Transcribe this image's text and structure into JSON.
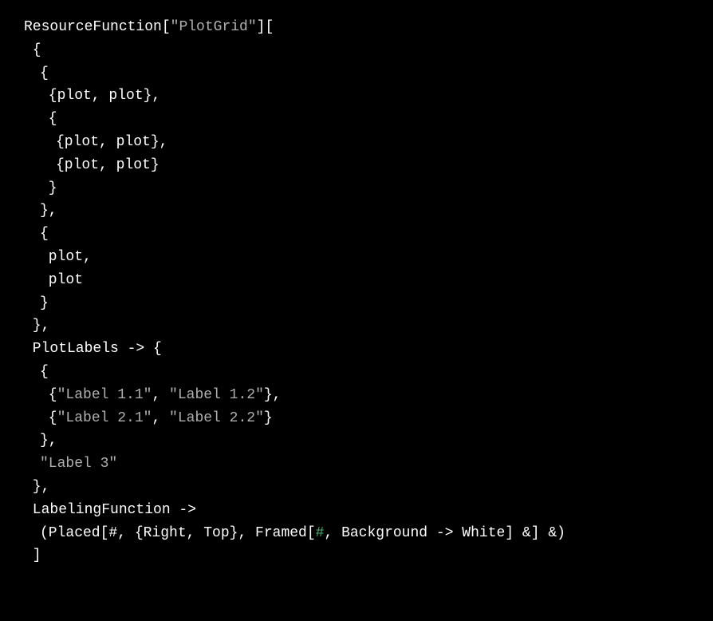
{
  "code": {
    "colors": {
      "background": "#000000",
      "text": "#ffffff",
      "string": "#b0b0b0",
      "slot": "#4fb070"
    },
    "font": {
      "family": "Courier New",
      "size_pt": 14
    },
    "lines": [
      {
        "parts": [
          {
            "t": "ResourceFunction[",
            "c": "ident"
          },
          {
            "t": "\"PlotGrid\"",
            "c": "str"
          },
          {
            "t": "][",
            "c": "ident"
          }
        ],
        "indent": 0
      },
      {
        "parts": [
          {
            "t": " {",
            "c": "ident"
          }
        ],
        "indent": 0
      },
      {
        "parts": [
          {
            "t": "{",
            "c": "ident"
          }
        ],
        "indent": 1
      },
      {
        "parts": [
          {
            "t": " {plot, plot},",
            "c": "ident"
          }
        ],
        "indent": 1
      },
      {
        "parts": [
          {
            "t": " {",
            "c": "ident"
          }
        ],
        "indent": 1
      },
      {
        "parts": [
          {
            "t": "{plot, plot},",
            "c": "ident"
          }
        ],
        "indent": 2
      },
      {
        "parts": [
          {
            "t": "{plot, plot}",
            "c": "ident"
          }
        ],
        "indent": 2
      },
      {
        "parts": [
          {
            "t": " }",
            "c": "ident"
          }
        ],
        "indent": 1
      },
      {
        "parts": [
          {
            "t": "},",
            "c": "ident"
          }
        ],
        "indent": 1
      },
      {
        "parts": [
          {
            "t": "{",
            "c": "ident"
          }
        ],
        "indent": 1
      },
      {
        "parts": [
          {
            "t": " plot,",
            "c": "ident"
          }
        ],
        "indent": 1
      },
      {
        "parts": [
          {
            "t": " plot",
            "c": "ident"
          }
        ],
        "indent": 1
      },
      {
        "parts": [
          {
            "t": "}",
            "c": "ident"
          }
        ],
        "indent": 1
      },
      {
        "parts": [
          {
            "t": " },",
            "c": "ident"
          }
        ],
        "indent": 0
      },
      {
        "parts": [
          {
            "t": " PlotLabels -> {",
            "c": "ident"
          }
        ],
        "indent": 0
      },
      {
        "parts": [
          {
            "t": "{",
            "c": "ident"
          }
        ],
        "indent": 1
      },
      {
        "parts": [
          {
            "t": " {",
            "c": "ident"
          },
          {
            "t": "\"Label 1.1\"",
            "c": "str"
          },
          {
            "t": ", ",
            "c": "ident"
          },
          {
            "t": "\"Label 1.2\"",
            "c": "str"
          },
          {
            "t": "},",
            "c": "ident"
          }
        ],
        "indent": 1
      },
      {
        "parts": [
          {
            "t": " {",
            "c": "ident"
          },
          {
            "t": "\"Label 2.1\"",
            "c": "str"
          },
          {
            "t": ", ",
            "c": "ident"
          },
          {
            "t": "\"Label 2.2\"",
            "c": "str"
          },
          {
            "t": "}",
            "c": "ident"
          }
        ],
        "indent": 1
      },
      {
        "parts": [
          {
            "t": "},",
            "c": "ident"
          }
        ],
        "indent": 1
      },
      {
        "parts": [
          {
            "t": "\"Label 3\"",
            "c": "str"
          }
        ],
        "indent": 1
      },
      {
        "parts": [
          {
            "t": " },",
            "c": "ident"
          }
        ],
        "indent": 0
      },
      {
        "parts": [
          {
            "t": " LabelingFunction ->",
            "c": "ident"
          }
        ],
        "indent": 0
      },
      {
        "parts": [
          {
            "t": "(Placed[#, {Right, Top}, Framed[",
            "c": "ident"
          },
          {
            "t": "#",
            "c": "slot"
          },
          {
            "t": ", Background -> White] &] &)",
            "c": "ident"
          }
        ],
        "indent": 1
      },
      {
        "parts": [
          {
            "t": " ]",
            "c": "ident"
          }
        ],
        "indent": 0
      }
    ]
  }
}
